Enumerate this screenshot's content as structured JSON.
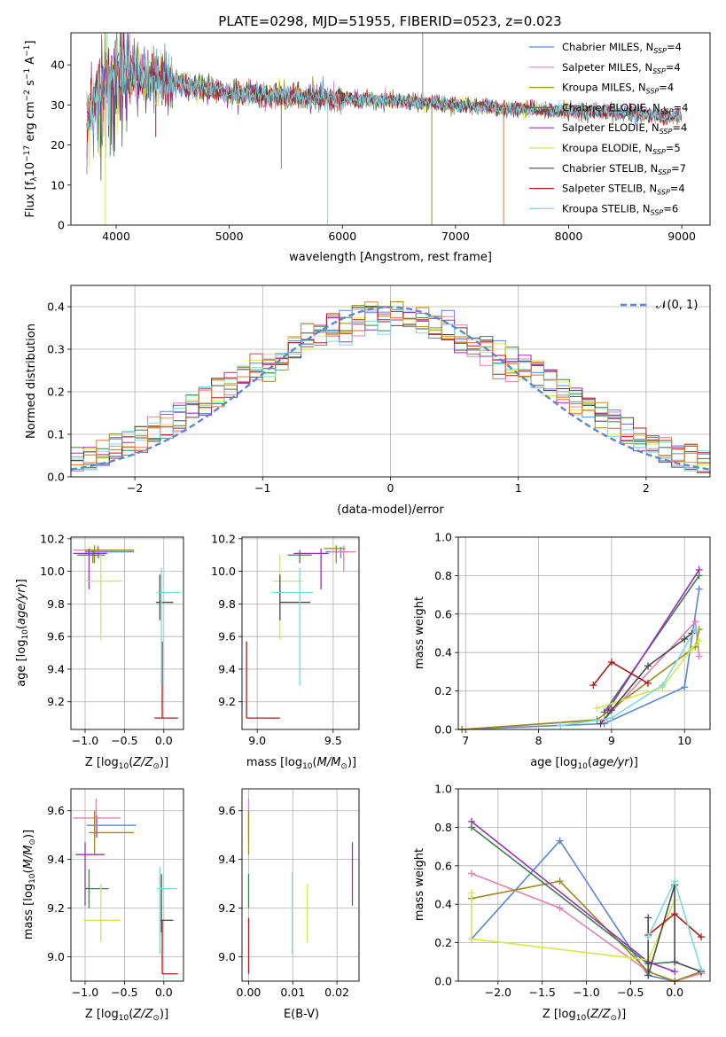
{
  "figure_title": "PLATE=0298, MJD=51955, FIBERID=0523, z=0.023",
  "models": [
    {
      "name": "Chabrier MILES",
      "legend": "Chabrier MILES, N",
      "nssp": "=4",
      "color": "#5b86d6"
    },
    {
      "name": "Salpeter MILES",
      "legend": "Salpeter MILES, N",
      "nssp": "=4",
      "color": "#e081b3"
    },
    {
      "name": "Kroupa MILES",
      "legend": "Kroupa MILES, N",
      "nssp": "=4",
      "color": "#9a8a1e"
    },
    {
      "name": "Chabrier ELODIE",
      "legend": "Chabrier ELODIE, N",
      "nssp": "=4",
      "color": "#3f7f4f"
    },
    {
      "name": "Salpeter ELODIE",
      "legend": "Salpeter ELODIE, N",
      "nssp": "=4",
      "color": "#9b30b6"
    },
    {
      "name": "Kroupa ELODIE",
      "legend": "Kroupa ELODIE, N",
      "nssp": "=5",
      "color": "#d4e84a"
    },
    {
      "name": "Chabrier STELIB",
      "legend": "Chabrier STELIB, N",
      "nssp": "=7",
      "color": "#4a4a4a"
    },
    {
      "name": "Salpeter STELIB",
      "legend": "Salpeter STELIB, N",
      "nssp": "=4",
      "color": "#b01a1a"
    },
    {
      "name": "Kroupa STELIB",
      "legend": "Kroupa STELIB, N",
      "nssp": "=6",
      "color": "#7ed8dc"
    }
  ],
  "chart_data": [
    {
      "id": "spectrum",
      "type": "line",
      "xlabel": "wavelength [Angstrom, rest frame]",
      "ylabel": "Flux [f",
      "xlim": [
        3600,
        9250
      ],
      "ylim": [
        0,
        48
      ],
      "xticks": [
        4000,
        5000,
        6000,
        7000,
        8000,
        9000
      ],
      "yticks": [
        0,
        10,
        20,
        30,
        40
      ],
      "continuum_points": [
        [
          3750,
          28
        ],
        [
          3850,
          33
        ],
        [
          3950,
          37
        ],
        [
          4050,
          38
        ],
        [
          4200,
          37
        ],
        [
          4400,
          36
        ],
        [
          4600,
          35
        ],
        [
          4800,
          34
        ],
        [
          5000,
          33
        ],
        [
          5300,
          32.5
        ],
        [
          5600,
          32
        ],
        [
          6000,
          31.5
        ],
        [
          6500,
          31
        ],
        [
          7000,
          30
        ],
        [
          7500,
          29
        ],
        [
          8000,
          28.5
        ],
        [
          8500,
          28
        ],
        [
          9000,
          27
        ]
      ]
    },
    {
      "id": "residual_hist",
      "type": "histogram",
      "xlabel": "(data-model)/error",
      "ylabel": "Normed distribution",
      "xlim": [
        -2.5,
        2.5
      ],
      "ylim": [
        0,
        0.45
      ],
      "xticks": [
        -2,
        -1,
        0,
        1,
        2
      ],
      "yticks": [
        0.0,
        0.1,
        0.2,
        0.3,
        0.4
      ],
      "bin_width": 0.1,
      "reference": {
        "label": "𝒩(0, 1)",
        "mean": 0,
        "sigma": 1,
        "color": "#5b86d6"
      }
    },
    {
      "id": "age_vs_z",
      "type": "errorbar",
      "xlabel": "Z [log",
      "ylabel": "age  [log",
      "xlim": [
        -1.18,
        0.25
      ],
      "ylim": [
        9.03,
        10.21
      ],
      "xticks": [
        -1.0,
        -0.5,
        0.0
      ],
      "yticks": [
        9.2,
        9.4,
        9.6,
        9.8,
        10.0,
        10.2
      ],
      "points": [
        {
          "model": 0,
          "x": -0.83,
          "y": 10.12,
          "xlo": -1.0,
          "xhi": -0.38,
          "ylo": 10.08,
          "yhi": 10.15
        },
        {
          "model": 1,
          "x": -0.84,
          "y": 10.13,
          "xlo": -1.15,
          "xhi": -0.6,
          "ylo": 10.08,
          "yhi": 10.16
        },
        {
          "model": 2,
          "x": -0.88,
          "y": 10.13,
          "xlo": -1.0,
          "xhi": -0.38,
          "ylo": 10.05,
          "yhi": 10.16
        },
        {
          "model": 3,
          "x": -0.9,
          "y": 10.1,
          "xlo": -1.1,
          "xhi": -0.75,
          "ylo": 10.05,
          "yhi": 10.13
        },
        {
          "model": 4,
          "x": -0.95,
          "y": 10.11,
          "xlo": -1.15,
          "xhi": -0.72,
          "ylo": 9.89,
          "yhi": 10.14
        },
        {
          "model": 5,
          "x": -0.8,
          "y": 9.94,
          "xlo": -1.0,
          "xhi": -0.52,
          "ylo": 9.58,
          "yhi": 10.1
        },
        {
          "model": 6,
          "x": -0.05,
          "y": 9.81,
          "xlo": -0.1,
          "xhi": 0.12,
          "ylo": 9.7,
          "yhi": 9.98
        },
        {
          "model": 7,
          "x": -0.02,
          "y": 9.1,
          "xlo": -0.12,
          "xhi": 0.18,
          "ylo": 9.1,
          "yhi": 9.57
        },
        {
          "model": 8,
          "x": -0.03,
          "y": 9.87,
          "xlo": -0.08,
          "xhi": 0.2,
          "ylo": 9.3,
          "yhi": 10.02
        }
      ]
    },
    {
      "id": "age_vs_mass",
      "type": "errorbar",
      "xlabel": "mass [log",
      "ylabel": "",
      "xlim": [
        8.9,
        9.67
      ],
      "ylim": [
        9.03,
        10.21
      ],
      "xticks": [
        9.0,
        9.5
      ],
      "yticks": [
        9.2,
        9.4,
        9.6,
        9.8,
        10.0,
        10.2
      ],
      "points": [
        {
          "model": 0,
          "x": 9.55,
          "y": 10.12,
          "xlo": 9.45,
          "xhi": 9.58,
          "ylo": 10.08,
          "yhi": 10.15
        },
        {
          "model": 1,
          "x": 9.57,
          "y": 10.12,
          "xlo": 9.48,
          "xhi": 9.65,
          "ylo": 10.0,
          "yhi": 10.16
        },
        {
          "model": 2,
          "x": 9.52,
          "y": 10.14,
          "xlo": 9.44,
          "xhi": 9.58,
          "ylo": 10.05,
          "yhi": 10.16
        },
        {
          "model": 3,
          "x": 9.28,
          "y": 10.1,
          "xlo": 9.2,
          "xhi": 9.36,
          "ylo": 10.05,
          "yhi": 10.13
        },
        {
          "model": 4,
          "x": 9.42,
          "y": 10.11,
          "xlo": 9.24,
          "xhi": 9.47,
          "ylo": 9.89,
          "yhi": 10.14
        },
        {
          "model": 5,
          "x": 9.15,
          "y": 9.94,
          "xlo": 9.1,
          "xhi": 9.3,
          "ylo": 9.58,
          "yhi": 10.1
        },
        {
          "model": 6,
          "x": 9.15,
          "y": 9.81,
          "xlo": 9.15,
          "xhi": 9.35,
          "ylo": 9.7,
          "yhi": 9.98
        },
        {
          "model": 7,
          "x": 8.93,
          "y": 9.1,
          "xlo": 8.93,
          "xhi": 9.15,
          "ylo": 9.1,
          "yhi": 9.57
        },
        {
          "model": 8,
          "x": 9.28,
          "y": 9.87,
          "xlo": 9.1,
          "xhi": 9.37,
          "ylo": 9.3,
          "yhi": 10.02
        }
      ]
    },
    {
      "id": "weight_vs_age",
      "type": "line",
      "xlabel": "age  [log",
      "ylabel": "mass weight",
      "xlim": [
        6.9,
        10.35
      ],
      "ylim": [
        0,
        1
      ],
      "xticks": [
        7,
        8,
        9,
        10
      ],
      "yticks": [
        0.0,
        0.2,
        0.4,
        0.6,
        0.8,
        1.0
      ],
      "series": [
        {
          "model": 0,
          "x": [
            6.95,
            8.9,
            10.0,
            10.2
          ],
          "y": [
            0.0,
            0.03,
            0.22,
            0.73
          ]
        },
        {
          "model": 1,
          "x": [
            6.95,
            8.9,
            10.15,
            10.2
          ],
          "y": [
            0.0,
            0.05,
            0.56,
            0.38
          ]
        },
        {
          "model": 2,
          "x": [
            6.95,
            8.8,
            10.15,
            10.2
          ],
          "y": [
            0.0,
            0.05,
            0.43,
            0.52
          ]
        },
        {
          "model": 3,
          "x": [
            8.9,
            10.2
          ],
          "y": [
            0.09,
            0.8
          ]
        },
        {
          "model": 4,
          "x": [
            8.95,
            10.2
          ],
          "y": [
            0.1,
            0.83
          ]
        },
        {
          "model": 5,
          "x": [
            8.8,
            9.7,
            10.1,
            10.2
          ],
          "y": [
            0.11,
            0.22,
            0.42,
            0.46
          ]
        },
        {
          "model": 6,
          "x": [
            8.85,
            9.0,
            9.5,
            10.0,
            10.1
          ],
          "y": [
            0.03,
            0.1,
            0.33,
            0.47,
            0.5
          ]
        },
        {
          "model": 7,
          "x": [
            8.75,
            9.0,
            9.5
          ],
          "y": [
            0.23,
            0.35,
            0.24
          ]
        },
        {
          "model": 8,
          "x": [
            8.3,
            9.0,
            9.7,
            10.15
          ],
          "y": [
            0.02,
            0.06,
            0.23,
            0.52
          ]
        }
      ]
    },
    {
      "id": "mass_vs_z",
      "type": "errorbar",
      "xlabel": "Z [log",
      "ylabel": "mass [log",
      "xlim": [
        -1.18,
        0.25
      ],
      "ylim": [
        8.9,
        9.69
      ],
      "xticks": [
        -1.0,
        -0.5,
        0.0
      ],
      "yticks": [
        9.0,
        9.2,
        9.4,
        9.6
      ],
      "points": [
        {
          "model": 0,
          "x": -0.85,
          "y": 9.54,
          "xlo": -0.98,
          "xhi": -0.35,
          "ylo": 9.49,
          "yhi": 9.58
        },
        {
          "model": 1,
          "x": -0.86,
          "y": 9.57,
          "xlo": -1.15,
          "xhi": -0.55,
          "ylo": 9.49,
          "yhi": 9.65
        },
        {
          "model": 2,
          "x": -0.88,
          "y": 9.51,
          "xlo": -0.95,
          "xhi": -0.38,
          "ylo": 9.42,
          "yhi": 9.6
        },
        {
          "model": 3,
          "x": -0.95,
          "y": 9.28,
          "xlo": -1.0,
          "xhi": -0.7,
          "ylo": 9.2,
          "yhi": 9.36
        },
        {
          "model": 4,
          "x": -1.0,
          "y": 9.42,
          "xlo": -1.12,
          "xhi": -0.75,
          "ylo": 9.21,
          "yhi": 9.47
        },
        {
          "model": 5,
          "x": -0.8,
          "y": 9.15,
          "xlo": -1.02,
          "xhi": -0.55,
          "ylo": 9.06,
          "yhi": 9.3
        },
        {
          "model": 6,
          "x": -0.03,
          "y": 9.15,
          "xlo": -0.05,
          "xhi": 0.12,
          "ylo": 9.1,
          "yhi": 9.34
        },
        {
          "model": 7,
          "x": -0.02,
          "y": 8.93,
          "xlo": -0.02,
          "xhi": 0.18,
          "ylo": 8.93,
          "yhi": 9.15
        },
        {
          "model": 8,
          "x": -0.05,
          "y": 9.28,
          "xlo": -0.08,
          "xhi": 0.17,
          "ylo": 9.01,
          "yhi": 9.37
        }
      ]
    },
    {
      "id": "mass_vs_ebv",
      "type": "errorbar",
      "xlabel": "E(B-V)",
      "ylabel": "",
      "xlim": [
        -0.0015,
        0.025
      ],
      "ylim": [
        8.9,
        9.69
      ],
      "xticks": [
        0.0,
        0.01,
        0.02
      ],
      "yticks": [
        9.0,
        9.2,
        9.4,
        9.6
      ],
      "points": [
        {
          "model": 1,
          "x": 0.0,
          "ylo": 9.49,
          "yhi": 9.65
        },
        {
          "model": 2,
          "x": 0.0,
          "ylo": 9.42,
          "yhi": 9.6
        },
        {
          "model": 3,
          "x": 0.0,
          "ylo": 9.2,
          "yhi": 9.34
        },
        {
          "model": 7,
          "x": 0.0,
          "ylo": 8.93,
          "yhi": 9.16
        },
        {
          "model": 8,
          "x": 0.0099,
          "ylo": 9.01,
          "yhi": 9.35
        },
        {
          "model": 5,
          "x": 0.0133,
          "ylo": 9.06,
          "yhi": 9.3
        },
        {
          "model": 4,
          "x": 0.0235,
          "ylo": 9.21,
          "yhi": 9.47
        }
      ]
    },
    {
      "id": "weight_vs_z",
      "type": "line",
      "xlabel": "Z [log",
      "ylabel": "mass weight",
      "xlim": [
        -2.45,
        0.4
      ],
      "ylim": [
        0,
        1
      ],
      "xticks": [
        -2.0,
        -1.5,
        -1.0,
        -0.5,
        0.0
      ],
      "yticks": [
        0.0,
        0.2,
        0.4,
        0.6,
        0.8,
        1.0
      ],
      "series": [
        {
          "model": 0,
          "x": [
            -2.3,
            -1.3,
            -0.3,
            0.0,
            0.3
          ],
          "y": [
            0.22,
            0.73,
            0.03,
            0.0,
            0.05
          ]
        },
        {
          "model": 1,
          "x": [
            -2.3,
            -1.3,
            -0.3,
            0.0,
            0.3
          ],
          "y": [
            0.56,
            0.38,
            0.05,
            0.0,
            0.04
          ]
        },
        {
          "model": 2,
          "x": [
            -2.3,
            -1.3,
            -0.3,
            0.0,
            0.3
          ],
          "y": [
            0.43,
            0.52,
            0.05,
            0.0,
            0.05
          ]
        },
        {
          "model": 3,
          "x": [
            -2.3,
            -0.3,
            0.0
          ],
          "y": [
            0.8,
            0.09,
            0.1
          ]
        },
        {
          "model": 4,
          "x": [
            -2.3,
            -0.3,
            0.0
          ],
          "y": [
            0.83,
            0.1,
            0.05
          ]
        },
        {
          "model": 5,
          "x": [
            -2.3,
            -2.3,
            -0.3,
            0.0
          ],
          "y": [
            0.46,
            0.22,
            0.11,
            0.42
          ]
        },
        {
          "model": 6,
          "x": [
            -0.3,
            -0.3,
            0.0,
            0.0,
            0.3
          ],
          "y": [
            0.33,
            0.03,
            0.5,
            0.1,
            0.05
          ]
        },
        {
          "model": 7,
          "x": [
            -0.3,
            0.0,
            0.3
          ],
          "y": [
            0.24,
            0.35,
            0.23
          ]
        },
        {
          "model": 8,
          "x": [
            -0.3,
            0.0,
            0.3
          ],
          "y": [
            0.23,
            0.52,
            0.06
          ]
        }
      ]
    }
  ]
}
